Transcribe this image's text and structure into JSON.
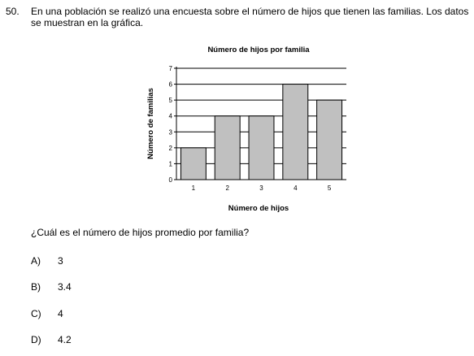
{
  "question": {
    "number": "50.",
    "stem": "En una población se realizó una encuesta sobre el número de hijos que tienen las familias. Los datos se muestran en la gráfica.",
    "prompt": "¿Cuál es el número de hijos promedio por familia?",
    "options": [
      {
        "letter": "A)",
        "text": "3"
      },
      {
        "letter": "B)",
        "text": "3.4"
      },
      {
        "letter": "C)",
        "text": "4"
      },
      {
        "letter": "D)",
        "text": "4.2"
      }
    ]
  },
  "chart_data": {
    "type": "bar",
    "title": "Número de hijos por familia",
    "xlabel": "Número de hijos",
    "ylabel": "Número de familias",
    "categories": [
      "1",
      "2",
      "3",
      "4",
      "5"
    ],
    "values": [
      2,
      4,
      4,
      6,
      5
    ],
    "ylim": [
      0,
      7
    ],
    "yticks": [
      "0",
      "1",
      "2",
      "3",
      "4",
      "5",
      "6",
      "7"
    ],
    "grid": true,
    "bar_color": "#c0c0c0"
  }
}
